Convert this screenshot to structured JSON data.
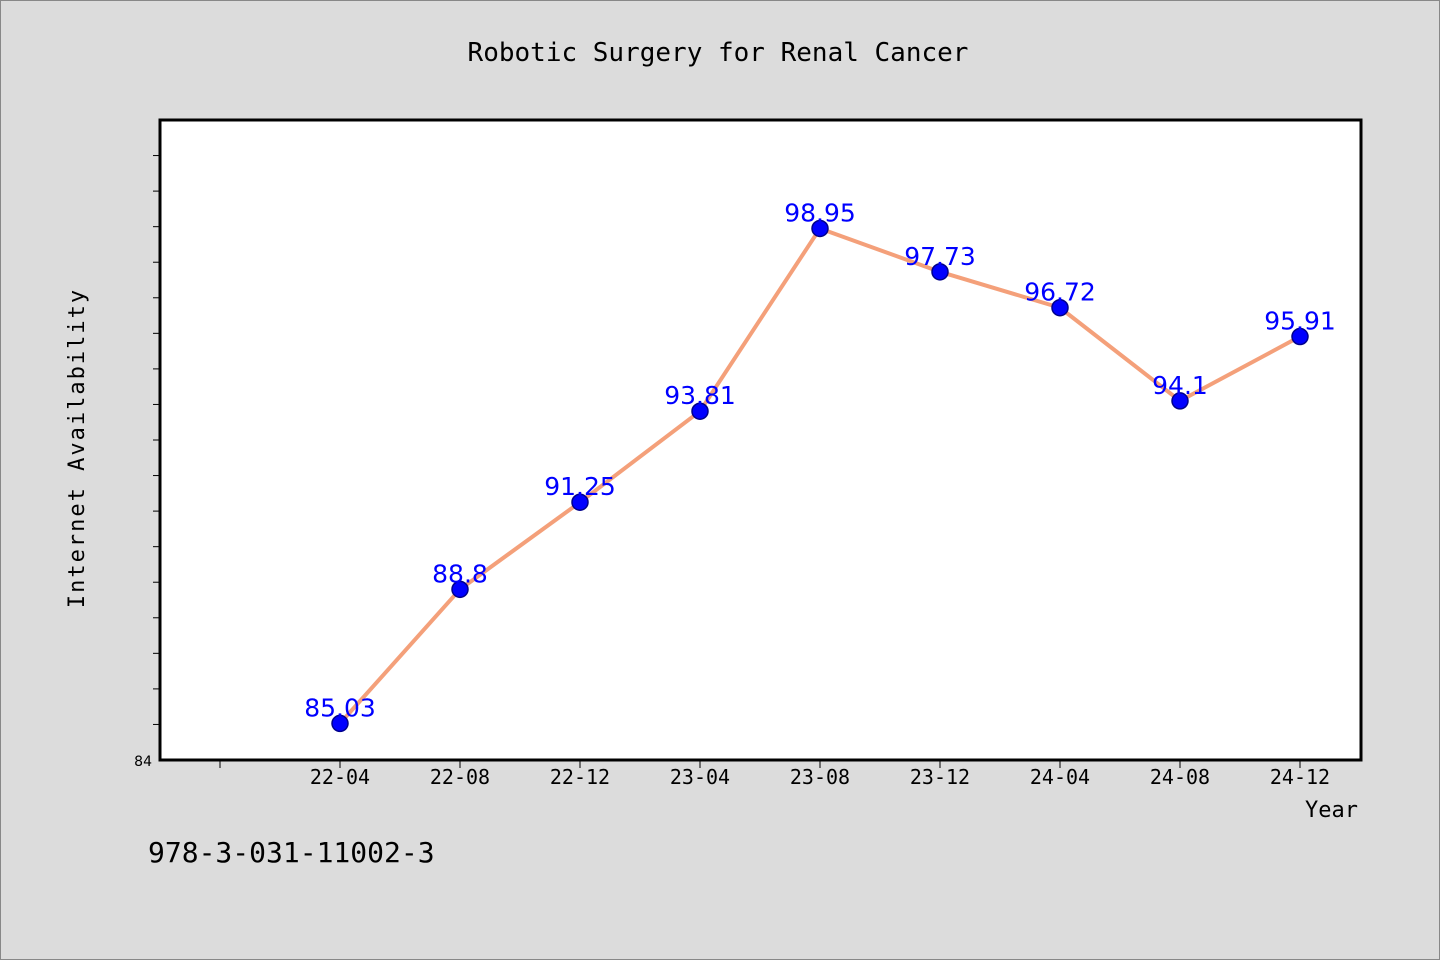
{
  "chart_data": {
    "type": "line",
    "title": "Robotic Surgery for Renal Cancer",
    "xlabel": "Year",
    "ylabel": "Internet Availability",
    "categories": [
      "22-04",
      "22-08",
      "22-12",
      "23-04",
      "23-08",
      "23-12",
      "24-04",
      "24-08",
      "24-12"
    ],
    "series": [
      {
        "values": [
          85.03,
          88.8,
          91.25,
          93.81,
          98.95,
          97.73,
          96.72,
          94.1,
          95.91
        ]
      }
    ],
    "data_labels": [
      "85.03",
      "88.8",
      "91.25",
      "93.81",
      "98.95",
      "97.73",
      "96.72",
      "94.1",
      "95.91"
    ],
    "y_tick_labels": [
      "84"
    ],
    "ylim": [
      84,
      102
    ],
    "grid": false,
    "legend": "none",
    "colors": {
      "line": "#f4a07a",
      "marker": "#0000ff",
      "marker_edge": "#00008b",
      "data_label": "#0000ff",
      "background": "#dcdcdc",
      "plot_background": "#ffffff"
    }
  },
  "footer": {
    "isbn": "978-3-031-11002-3"
  }
}
